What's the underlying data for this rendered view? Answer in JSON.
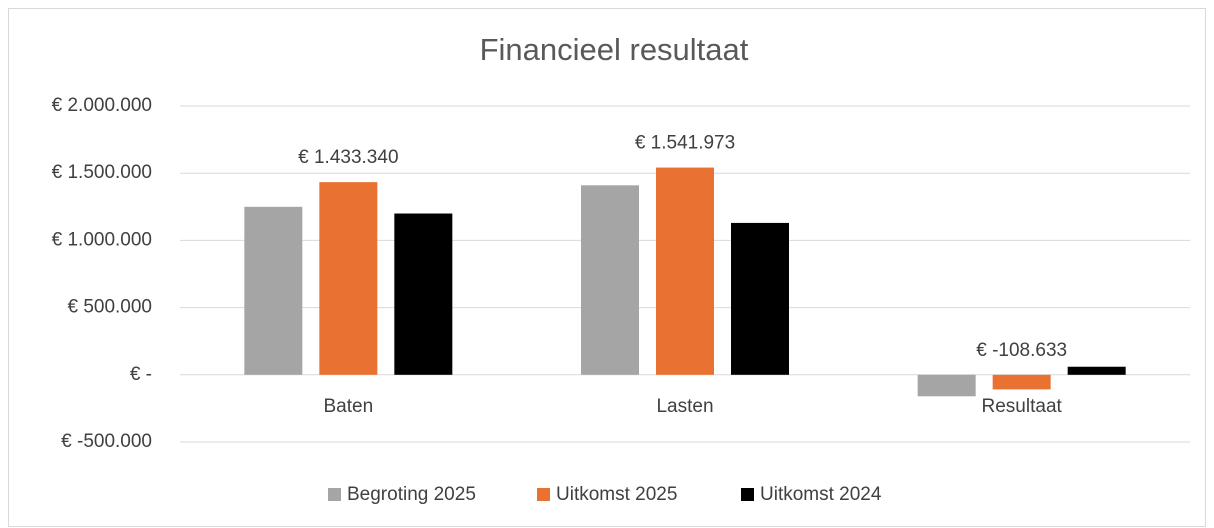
{
  "chart_data": {
    "type": "bar",
    "title": "Financieel resultaat",
    "categories": [
      "Baten",
      "Lasten",
      "Resultaat"
    ],
    "series": [
      {
        "name": "Begroting 2025",
        "color": "#a5a5a5",
        "values": [
          1250000,
          1410000,
          -160000
        ]
      },
      {
        "name": "Uitkomst 2025",
        "color": "#e97132",
        "values": [
          1433340,
          1541973,
          -108633
        ],
        "value_labels": [
          "€ 1.433.340",
          "€ 1.541.973",
          "€ -108.633"
        ]
      },
      {
        "name": "Uitkomst 2024",
        "color": "#000000",
        "values": [
          1200000,
          1130000,
          60000
        ]
      }
    ],
    "ylim": [
      -500000,
      2000000
    ],
    "yticks": [
      {
        "value": -500000,
        "label": "€ -500.000"
      },
      {
        "value": 0,
        "label": "€ -"
      },
      {
        "value": 500000,
        "label": "€ 500.000"
      },
      {
        "value": 1000000,
        "label": "€ 1.000.000"
      },
      {
        "value": 1500000,
        "label": "€ 1.500.000"
      },
      {
        "value": 2000000,
        "label": "€ 2.000.000"
      }
    ],
    "grid": true,
    "legend": "bottom"
  }
}
